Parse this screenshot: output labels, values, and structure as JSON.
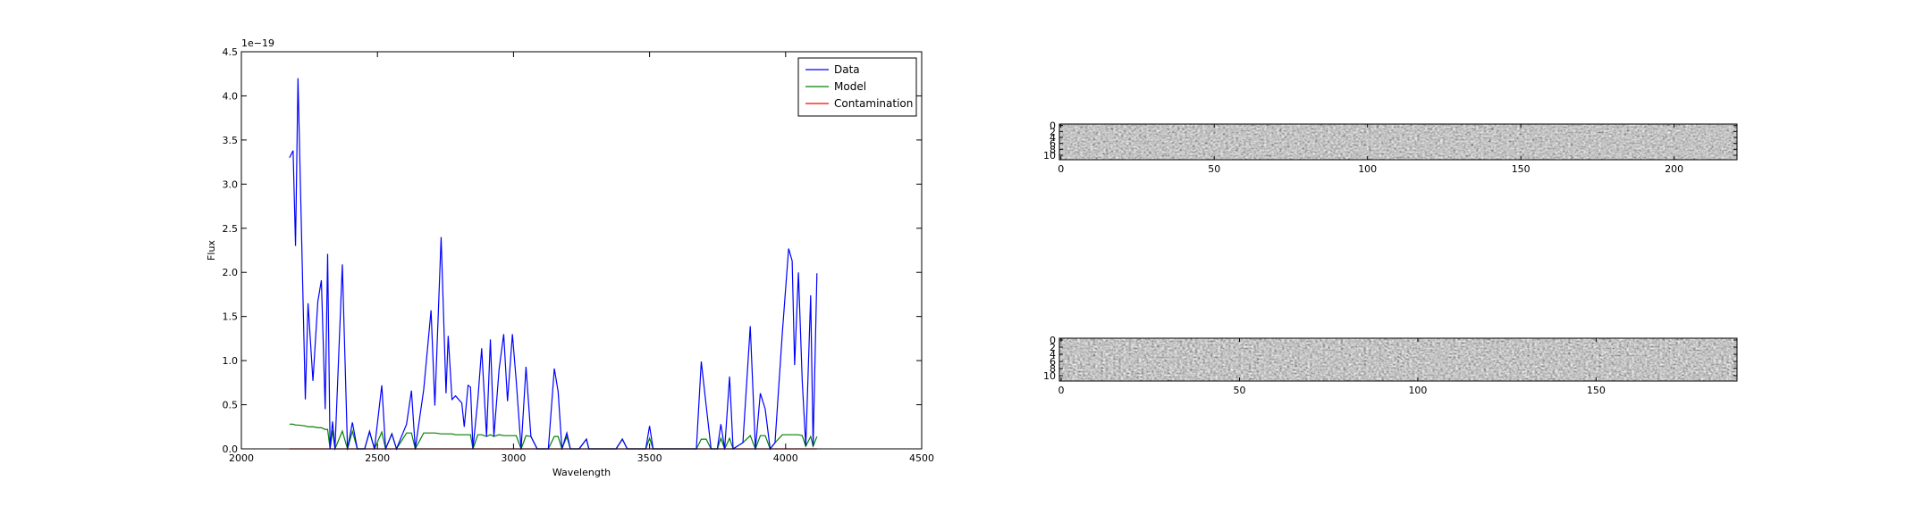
{
  "chart_data": [
    {
      "type": "line",
      "x_label": "Wavelength",
      "y_label": "Flux",
      "y_offset_text": "1e−19",
      "x": [
        2177,
        2190,
        2199,
        2208,
        2235,
        2245,
        2263,
        2281,
        2294,
        2308,
        2317,
        2326,
        2335,
        2344,
        2371,
        2390,
        2408,
        2426,
        2453,
        2471,
        2489,
        2516,
        2530,
        2553,
        2570,
        2607,
        2625,
        2639,
        2670,
        2697,
        2711,
        2734,
        2752,
        2760,
        2774,
        2787,
        2810,
        2819,
        2833,
        2842,
        2851,
        2869,
        2883,
        2901,
        2915,
        2928,
        2947,
        2964,
        2978,
        2996,
        3010,
        3028,
        3046,
        3064,
        3087,
        3128,
        3150,
        3164,
        3178,
        3196,
        3209,
        3241,
        3268,
        3277,
        3377,
        3400,
        3418,
        3486,
        3500,
        3513,
        3672,
        3690,
        3708,
        3726,
        3749,
        3762,
        3776,
        3794,
        3807,
        3843,
        3870,
        3889,
        3907,
        3925,
        3943,
        3961,
        3988,
        4011,
        4024,
        4033,
        4047,
        4061,
        4074,
        4092,
        4101,
        4115
      ],
      "series": [
        {
          "name": "Data",
          "color": "#0000ff",
          "values": [
            3.3,
            3.38,
            2.3,
            4.2,
            0.56,
            1.65,
            0.77,
            1.67,
            1.91,
            0.45,
            2.21,
            0,
            0.31,
            0,
            2.09,
            0,
            0.3,
            0,
            0,
            0.2,
            0,
            0.72,
            0,
            0.17,
            0,
            0.28,
            0.66,
            0,
            0.67,
            1.57,
            0.49,
            2.4,
            0.63,
            1.28,
            0.56,
            0.6,
            0.52,
            0.25,
            0.72,
            0.7,
            0,
            0.56,
            1.14,
            0.14,
            1.24,
            0.14,
            0.9,
            1.3,
            0.54,
            1.3,
            0.77,
            0,
            0.93,
            0.14,
            0,
            0,
            0.91,
            0.65,
            0,
            0.18,
            0,
            0,
            0.11,
            0,
            0,
            0.11,
            0,
            0,
            0.26,
            0,
            0,
            0.99,
            0.49,
            0,
            0,
            0.28,
            0,
            0.82,
            0,
            0.07,
            1.39,
            0,
            0.63,
            0.45,
            0,
            0.07,
            1.32,
            2.27,
            2.13,
            0.95,
            2.0,
            0.77,
            0.03,
            1.74,
            0.03,
            1.99
          ]
        },
        {
          "name": "Model",
          "color": "#008000",
          "values": [
            0.28,
            0.28,
            0.27,
            0.27,
            0.26,
            0.25,
            0.25,
            0.24,
            0.24,
            0.22,
            0.22,
            0,
            0.21,
            0,
            0.2,
            0,
            0.2,
            0,
            0,
            0.19,
            0,
            0.19,
            0,
            0.17,
            0,
            0.18,
            0.18,
            0,
            0.18,
            0.18,
            0.18,
            0.17,
            0.17,
            0.17,
            0.17,
            0.16,
            0.16,
            0.16,
            0.16,
            0.16,
            0,
            0.16,
            0.16,
            0.14,
            0.16,
            0.14,
            0.16,
            0.15,
            0.15,
            0.15,
            0.15,
            0,
            0.15,
            0.14,
            0,
            0,
            0.14,
            0.14,
            0,
            0.14,
            0,
            0,
            0.11,
            0,
            0,
            0.11,
            0,
            0,
            0.12,
            0,
            0,
            0.11,
            0.11,
            0,
            0,
            0.12,
            0,
            0.12,
            0,
            0.07,
            0.15,
            0,
            0.15,
            0.15,
            0,
            0.07,
            0.16,
            0.16,
            0.16,
            0.16,
            0.16,
            0.15,
            0.03,
            0.14,
            0.03,
            0.14
          ]
        },
        {
          "name": "Contamination",
          "color": "#ff0000",
          "values": [
            0,
            0,
            0,
            0,
            0,
            0,
            0,
            0,
            0,
            0,
            0,
            0,
            0,
            0,
            0,
            0,
            0,
            0,
            0,
            0,
            0,
            0,
            0,
            0,
            0,
            0,
            0,
            0,
            0,
            0,
            0,
            0,
            0,
            0,
            0,
            0,
            0,
            0,
            0,
            0,
            0,
            0,
            0,
            0,
            0,
            0,
            0,
            0,
            0,
            0,
            0,
            0,
            0,
            0,
            0,
            0,
            0,
            0,
            0,
            0,
            0,
            0,
            0,
            0,
            0,
            0,
            0,
            0,
            0,
            0,
            0,
            0,
            0,
            0,
            0,
            0,
            0,
            0,
            0,
            0,
            0,
            0,
            0,
            0,
            0,
            0,
            0,
            0,
            0,
            0,
            0,
            0,
            0,
            0,
            0,
            0
          ]
        }
      ],
      "xlim": [
        2000,
        4500
      ],
      "xticks": [
        2000,
        2500,
        3000,
        3500,
        4000,
        4500
      ],
      "ylim": [
        0,
        4.5
      ],
      "yticks": [
        {
          "value": 0,
          "label": "0.0"
        },
        0.5,
        {
          "value": 1,
          "label": "1.0"
        },
        1.5,
        {
          "value": 2,
          "label": "2.0"
        },
        2.5,
        {
          "value": 3,
          "label": "3.0"
        },
        3.5,
        {
          "value": 4,
          "label": "4.0"
        },
        4.5
      ],
      "legend": "upper right"
    },
    {
      "type": "image",
      "xlim": [
        -0.5,
        220.5
      ],
      "xticks": [
        0,
        50,
        100,
        150,
        200
      ],
      "ylim": [
        11.5,
        -0.5
      ],
      "yticks": [
        0,
        2,
        4,
        6,
        8,
        10
      ]
    },
    {
      "type": "image",
      "xlim": [
        -0.5,
        189.5
      ],
      "xticks": [
        0,
        50,
        100,
        150
      ],
      "ylim": [
        11.5,
        -0.5
      ],
      "yticks": [
        0,
        2,
        4,
        6,
        8,
        10
      ]
    }
  ]
}
